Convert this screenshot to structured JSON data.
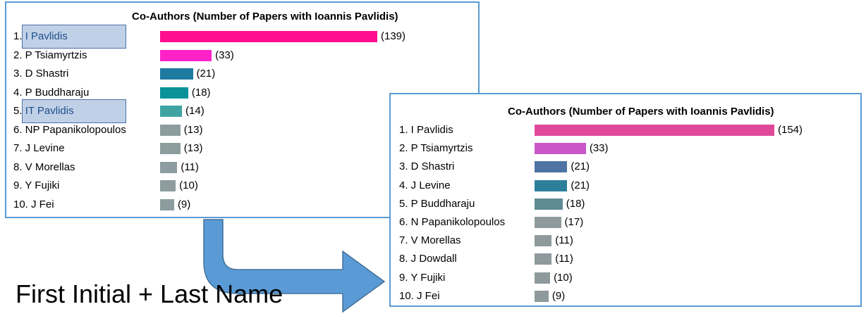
{
  "caption": "First Initial + Last Name",
  "chart_data": [
    {
      "type": "bar",
      "title": "Co-Authors (Number of Papers with Ioannis Pavlidis)",
      "categories": [
        "1. I Pavlidis",
        "2. P Tsiamyrtzis",
        "3. D Shastri",
        "4. P Buddharaju",
        "5. IT Pavlidis",
        "6. NP Papanikolopoulos",
        "7. J Levine",
        "8. V Morellas",
        "9. Y Fujiki",
        "10. J Fei"
      ],
      "values": [
        139,
        33,
        21,
        18,
        14,
        13,
        13,
        11,
        10,
        9
      ],
      "value_labels": [
        "(139)",
        "(33)",
        "(21)",
        "(18)",
        "(14)",
        "(13)",
        "(13)",
        "(11)",
        "(10)",
        "(9)"
      ],
      "colors": [
        "#ff0f8f",
        "#ff22c8",
        "#1f7aa0",
        "#0b9299",
        "#3fa3a3",
        "#8c9c9f",
        "#8c9c9f",
        "#8c9c9f",
        "#8c9c9f",
        "#8c9c9f"
      ],
      "highlighted": [
        0,
        4
      ]
    },
    {
      "type": "bar",
      "title": "Co-Authors (Number of Papers with Ioannis Pavlidis)",
      "categories": [
        "1. I Pavlidis",
        "2. P Tsiamyrtzis",
        "3. D Shastri",
        "4. J Levine",
        "5. P Buddharaju",
        "6. N Papanikolopoulos",
        "7. V Morellas",
        "8. J Dowdall",
        "9. Y Fujiki",
        "10. J Fei"
      ],
      "values": [
        154,
        33,
        21,
        21,
        18,
        17,
        11,
        11,
        10,
        9
      ],
      "value_labels": [
        "(154)",
        "(33)",
        "(21)",
        "(21)",
        "(18)",
        "(17)",
        "(11)",
        "(11)",
        "(10)",
        "(9)"
      ],
      "colors": [
        "#e0489a",
        "#c957c9",
        "#4f73a3",
        "#2d7f9c",
        "#5e8b94",
        "#8e9a9c",
        "#8e9a9c",
        "#8e9a9c",
        "#8e9a9c",
        "#8e9a9c"
      ],
      "highlighted": []
    }
  ]
}
